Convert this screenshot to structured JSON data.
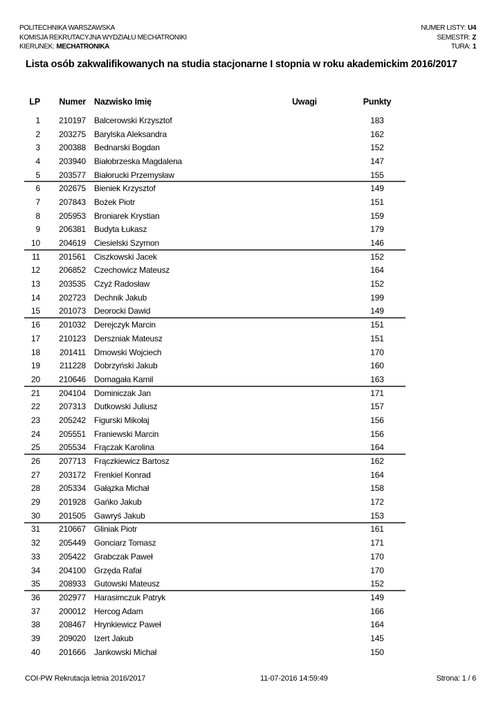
{
  "header": {
    "left_lines": [
      "POLITECHNIKA WARSZAWSKA",
      "KOMISJA REKRUTACYJNA WYDZIAŁU MECHATRONIKI"
    ],
    "kierunek_label": "KIERUNEK:",
    "kierunek_value": "MECHATRONIKA",
    "right": [
      {
        "label": "NUMER LISTY:",
        "value": "U4"
      },
      {
        "label": "SEMESTR:",
        "value": "Z"
      },
      {
        "label": "TURA:",
        "value": "1"
      }
    ]
  },
  "title": "Lista osób zakwalifikowanych na studia stacjonarne I stopnia w roku akademickim 2016/2017",
  "table": {
    "columns": [
      "LP",
      "Numer",
      "Nazwisko Imię",
      "Uwagi",
      "Punkty"
    ],
    "group_size": 5,
    "rows": [
      {
        "lp": 1,
        "numer": "210197",
        "nazwisko": "Balcerowski Krzysztof",
        "uwagi": "",
        "punkty": 183
      },
      {
        "lp": 2,
        "numer": "203275",
        "nazwisko": "Barylska Aleksandra",
        "uwagi": "",
        "punkty": 162
      },
      {
        "lp": 3,
        "numer": "200388",
        "nazwisko": "Bednarski Bogdan",
        "uwagi": "",
        "punkty": 152
      },
      {
        "lp": 4,
        "numer": "203940",
        "nazwisko": "Białobrzeska Magdalena",
        "uwagi": "",
        "punkty": 147
      },
      {
        "lp": 5,
        "numer": "203577",
        "nazwisko": "Białorucki Przemysław",
        "uwagi": "",
        "punkty": 155
      },
      {
        "lp": 6,
        "numer": "202675",
        "nazwisko": "Bieniek Krzysztof",
        "uwagi": "",
        "punkty": 149
      },
      {
        "lp": 7,
        "numer": "207843",
        "nazwisko": "Bożek Piotr",
        "uwagi": "",
        "punkty": 151
      },
      {
        "lp": 8,
        "numer": "205953",
        "nazwisko": "Broniarek Krystian",
        "uwagi": "",
        "punkty": 159
      },
      {
        "lp": 9,
        "numer": "206381",
        "nazwisko": "Budyta Łukasz",
        "uwagi": "",
        "punkty": 179
      },
      {
        "lp": 10,
        "numer": "204619",
        "nazwisko": "Ciesielski Szymon",
        "uwagi": "",
        "punkty": 146
      },
      {
        "lp": 11,
        "numer": "201561",
        "nazwisko": "Ciszkowski Jacek",
        "uwagi": "",
        "punkty": 152
      },
      {
        "lp": 12,
        "numer": "206852",
        "nazwisko": "Czechowicz Mateusz",
        "uwagi": "",
        "punkty": 164
      },
      {
        "lp": 13,
        "numer": "203535",
        "nazwisko": "Czyż Radosław",
        "uwagi": "",
        "punkty": 152
      },
      {
        "lp": 14,
        "numer": "202723",
        "nazwisko": "Dechnik Jakub",
        "uwagi": "",
        "punkty": 199
      },
      {
        "lp": 15,
        "numer": "201073",
        "nazwisko": "Deorocki Dawid",
        "uwagi": "",
        "punkty": 149
      },
      {
        "lp": 16,
        "numer": "201032",
        "nazwisko": "Derejczyk Marcin",
        "uwagi": "",
        "punkty": 151
      },
      {
        "lp": 17,
        "numer": "210123",
        "nazwisko": "Derszniak Mateusz",
        "uwagi": "",
        "punkty": 151
      },
      {
        "lp": 18,
        "numer": "201411",
        "nazwisko": "Dmowski Wojciech",
        "uwagi": "",
        "punkty": 170
      },
      {
        "lp": 19,
        "numer": "211228",
        "nazwisko": "Dobrzyński Jakub",
        "uwagi": "",
        "punkty": 160
      },
      {
        "lp": 20,
        "numer": "210646",
        "nazwisko": "Domagała Kamil",
        "uwagi": "",
        "punkty": 163
      },
      {
        "lp": 21,
        "numer": "204104",
        "nazwisko": "Dominiczak Jan",
        "uwagi": "",
        "punkty": 171
      },
      {
        "lp": 22,
        "numer": "207313",
        "nazwisko": "Dutkowski Juliusz",
        "uwagi": "",
        "punkty": 157
      },
      {
        "lp": 23,
        "numer": "205242",
        "nazwisko": "Figurski Mikołaj",
        "uwagi": "",
        "punkty": 156
      },
      {
        "lp": 24,
        "numer": "205551",
        "nazwisko": "Franiewski Marcin",
        "uwagi": "",
        "punkty": 156
      },
      {
        "lp": 25,
        "numer": "205534",
        "nazwisko": "Frączak Karolina",
        "uwagi": "",
        "punkty": 164
      },
      {
        "lp": 26,
        "numer": "207713",
        "nazwisko": "Frączkiewicz Bartosz",
        "uwagi": "",
        "punkty": 162
      },
      {
        "lp": 27,
        "numer": "203172",
        "nazwisko": "Frenkiel Konrad",
        "uwagi": "",
        "punkty": 164
      },
      {
        "lp": 28,
        "numer": "205334",
        "nazwisko": "Gałązka Michał",
        "uwagi": "",
        "punkty": 158
      },
      {
        "lp": 29,
        "numer": "201928",
        "nazwisko": "Gańko Jakub",
        "uwagi": "",
        "punkty": 172
      },
      {
        "lp": 30,
        "numer": "201505",
        "nazwisko": "Gawryś Jakub",
        "uwagi": "",
        "punkty": 153
      },
      {
        "lp": 31,
        "numer": "210667",
        "nazwisko": "Gliniak Piotr",
        "uwagi": "",
        "punkty": 161
      },
      {
        "lp": 32,
        "numer": "205449",
        "nazwisko": "Gonciarz Tomasz",
        "uwagi": "",
        "punkty": 171
      },
      {
        "lp": 33,
        "numer": "205422",
        "nazwisko": "Grabczak Paweł",
        "uwagi": "",
        "punkty": 170
      },
      {
        "lp": 34,
        "numer": "204100",
        "nazwisko": "Grzęda Rafał",
        "uwagi": "",
        "punkty": 170
      },
      {
        "lp": 35,
        "numer": "208933",
        "nazwisko": "Gutowski Mateusz",
        "uwagi": "",
        "punkty": 152
      },
      {
        "lp": 36,
        "numer": "202977",
        "nazwisko": "Harasimczuk Patryk",
        "uwagi": "",
        "punkty": 149
      },
      {
        "lp": 37,
        "numer": "200012",
        "nazwisko": "Hercog Adam",
        "uwagi": "",
        "punkty": 166
      },
      {
        "lp": 38,
        "numer": "208467",
        "nazwisko": "Hrynkiewicz Paweł",
        "uwagi": "",
        "punkty": 164
      },
      {
        "lp": 39,
        "numer": "209020",
        "nazwisko": "Izert Jakub",
        "uwagi": "",
        "punkty": 145
      },
      {
        "lp": 40,
        "numer": "201666",
        "nazwisko": "Jankowski Michał",
        "uwagi": "",
        "punkty": 150
      }
    ]
  },
  "footer": {
    "left": "COI-PW Rekrutacja letnia 2016/2017",
    "center": "11-07-2016 14:59:49",
    "right": "Strona: 1 / 6"
  }
}
